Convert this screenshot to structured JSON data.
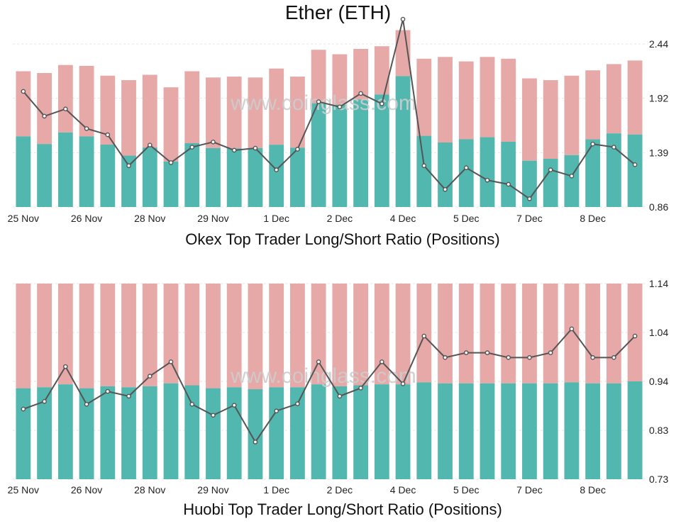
{
  "title": "Ether (ETH)",
  "watermark": "www.coinglass.com",
  "colors": {
    "long": "#52b7ae",
    "short": "#e7a8a8",
    "line": "#555555"
  },
  "chart_data": [
    {
      "type": "bar",
      "subtitle": "Okex Top Trader Long/Short Ratio (Positions)",
      "x_ticks": [
        "25 Nov",
        "26 Nov",
        "28 Nov",
        "29 Nov",
        "1 Dec",
        "2 Dec",
        "4 Dec",
        "5 Dec",
        "7 Dec",
        "8 Dec"
      ],
      "x_tick_bar_index": [
        0,
        3,
        6,
        9,
        12,
        15,
        18,
        21,
        24,
        27
      ],
      "y_ticks": [
        "2.44",
        "1.92",
        "1.39",
        "0.86"
      ],
      "ylim": [
        0.86,
        2.44
      ],
      "bar_totals": [
        0.76,
        0.75,
        0.795,
        0.79,
        0.735,
        0.71,
        0.74,
        0.67,
        0.76,
        0.725,
        0.73,
        0.725,
        0.775,
        0.73,
        0.88,
        0.855,
        0.885,
        0.9,
        0.99,
        0.83,
        0.84,
        0.815,
        0.84,
        0.83,
        0.72,
        0.71,
        0.735,
        0.765,
        0.8,
        0.82
      ],
      "long_share": [
        0.52,
        0.47,
        0.525,
        0.5,
        0.475,
        0.405,
        0.45,
        0.38,
        0.47,
        0.455,
        0.45,
        0.455,
        0.45,
        0.455,
        0.66,
        0.67,
        0.68,
        0.7,
        0.74,
        0.48,
        0.43,
        0.465,
        0.465,
        0.44,
        0.36,
        0.38,
        0.395,
        0.495,
        0.515,
        0.495
      ],
      "ratio": [
        1.98,
        1.74,
        1.81,
        1.62,
        1.56,
        1.26,
        1.46,
        1.29,
        1.44,
        1.49,
        1.41,
        1.43,
        1.22,
        1.42,
        1.88,
        1.83,
        1.96,
        1.86,
        2.68,
        1.26,
        1.03,
        1.24,
        1.12,
        1.08,
        0.94,
        1.22,
        1.16,
        1.47,
        1.44,
        1.27
      ]
    },
    {
      "type": "bar",
      "subtitle": "Huobi Top Trader Long/Short Ratio (Positions)",
      "x_ticks": [
        "25 Nov",
        "26 Nov",
        "28 Nov",
        "29 Nov",
        "1 Dec",
        "2 Dec",
        "4 Dec",
        "5 Dec",
        "7 Dec",
        "8 Dec"
      ],
      "x_tick_bar_index": [
        0,
        3,
        6,
        9,
        12,
        15,
        18,
        21,
        24,
        27
      ],
      "y_ticks": [
        "1.14",
        "1.04",
        "0.94",
        "0.83",
        "0.73"
      ],
      "ylim": [
        0.73,
        1.14
      ],
      "bar_totals": [
        1,
        1,
        1,
        1,
        1,
        1,
        1,
        1,
        1,
        1,
        1,
        1,
        1,
        1,
        1,
        1,
        1,
        1,
        1,
        1,
        1,
        1,
        1,
        1,
        1,
        1,
        1,
        1,
        1,
        1
      ],
      "long_share": [
        0.465,
        0.47,
        0.485,
        0.465,
        0.475,
        0.47,
        0.475,
        0.49,
        0.48,
        0.465,
        0.47,
        0.46,
        0.47,
        0.47,
        0.485,
        0.475,
        0.48,
        0.485,
        0.485,
        0.495,
        0.49,
        0.49,
        0.49,
        0.49,
        0.49,
        0.49,
        0.495,
        0.49,
        0.49,
        0.5
      ],
      "ratio": [
        0.877,
        0.893,
        0.966,
        0.887,
        0.914,
        0.904,
        0.946,
        0.976,
        0.887,
        0.864,
        0.885,
        0.808,
        0.873,
        0.888,
        0.976,
        0.904,
        0.921,
        0.976,
        0.93,
        1.03,
        0.985,
        0.995,
        0.995,
        0.985,
        0.985,
        0.995,
        1.045,
        0.985,
        0.985,
        1.03
      ]
    }
  ]
}
